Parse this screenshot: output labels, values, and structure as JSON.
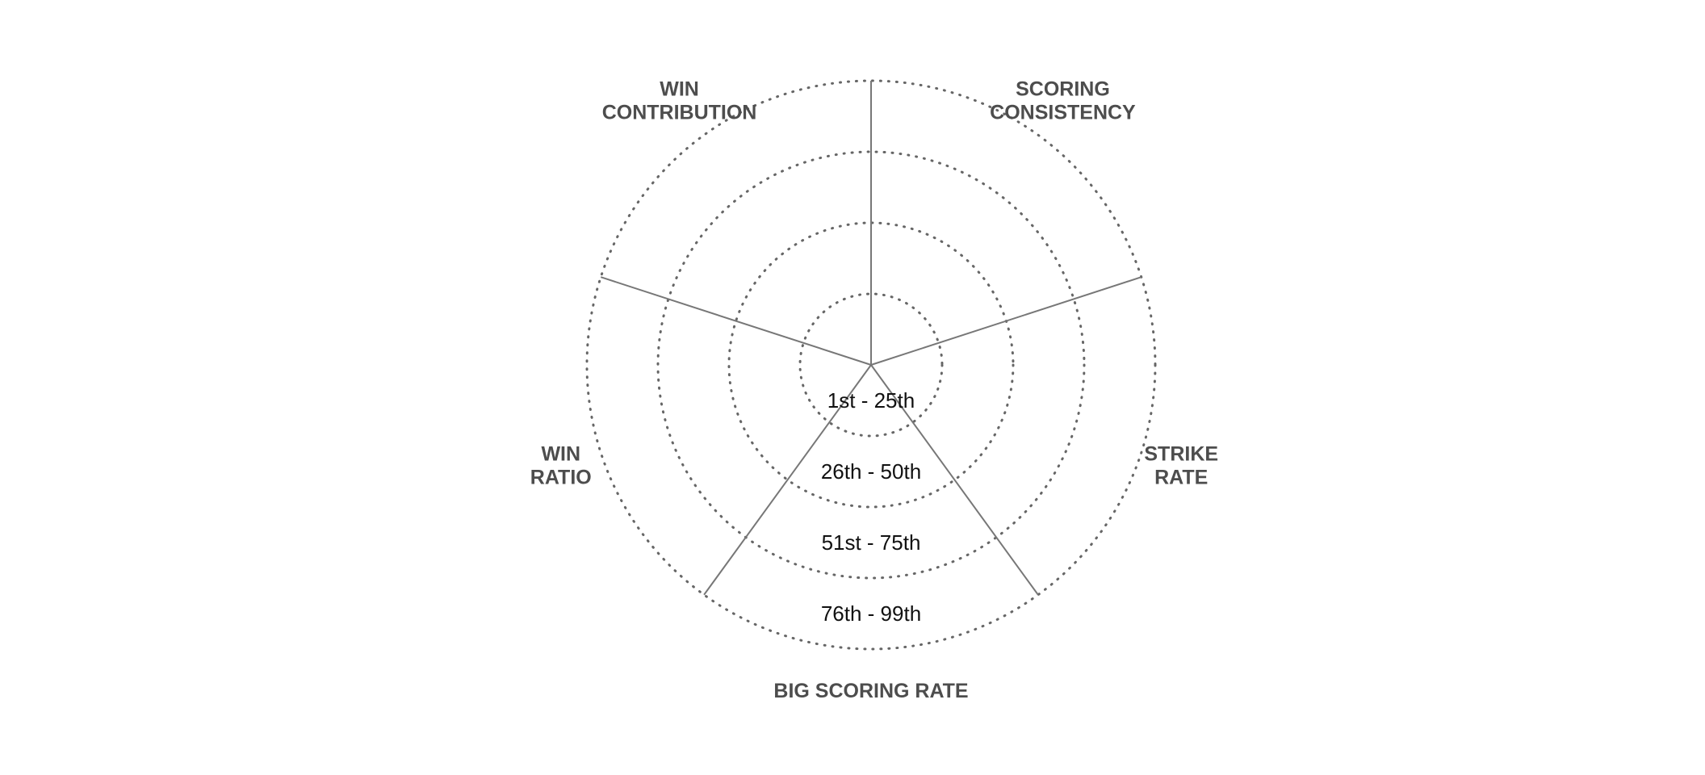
{
  "chart_data": {
    "type": "radar",
    "title": "",
    "axes": [
      {
        "label_lines": [
          "SCORING",
          "CONSISTENCY"
        ]
      },
      {
        "label_lines": [
          "STRIKE",
          "RATE"
        ]
      },
      {
        "label_lines": [
          "BIG SCORING RATE"
        ]
      },
      {
        "label_lines": [
          "WIN",
          "RATIO"
        ]
      },
      {
        "label_lines": [
          "WIN",
          "CONTRIBUTION"
        ]
      }
    ],
    "bands": [
      "1st - 25th",
      "26th - 50th",
      "51st - 75th",
      "76th - 99th"
    ],
    "series": [],
    "grid": true,
    "legend": "none"
  }
}
